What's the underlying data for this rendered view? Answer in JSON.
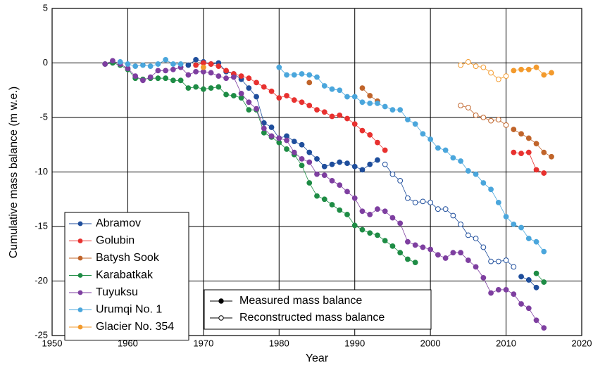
{
  "chart_data": {
    "type": "line",
    "xlabel": "Year",
    "ylabel": "Cumulative mass balance (m w.e.)",
    "xlim": [
      1950,
      2020
    ],
    "xticks": [
      1950,
      1960,
      1970,
      1980,
      1990,
      2000,
      2010,
      2020
    ],
    "ylim": [
      -25,
      5
    ],
    "yticks": [
      -25,
      -20,
      -15,
      -10,
      -5,
      0,
      5
    ],
    "grid": true,
    "legend": "lower left",
    "marker_legend": [
      {
        "style": "measured",
        "label": "Measured mass balance"
      },
      {
        "style": "reconstructed",
        "label": "Reconstructed mass balance"
      }
    ],
    "series": [
      {
        "name": "Abramov",
        "color": "#1f4e9c",
        "segments": [
          {
            "style": "measured",
            "x": [
              1968,
              1969,
              1970,
              1971,
              1972,
              1973,
              1974,
              1975,
              1976,
              1977,
              1978,
              1979,
              1980,
              1981,
              1982,
              1983,
              1984,
              1985,
              1986,
              1987,
              1988,
              1989,
              1990,
              1991,
              1992,
              1993
            ],
            "values": [
              -0.2,
              0.3,
              0.1,
              -0.1,
              0.0,
              -0.8,
              -1.0,
              -1.5,
              -2.3,
              -3.1,
              -5.5,
              -5.9,
              -6.9,
              -6.7,
              -7.2,
              -7.5,
              -8.2,
              -8.8,
              -9.5,
              -9.3,
              -9.1,
              -9.2,
              -9.5,
              -9.8,
              -9.3,
              -8.9
            ]
          },
          {
            "style": "reconstructed",
            "x": [
              1994,
              1995,
              1996,
              1997,
              1998,
              1999,
              2000,
              2001,
              2002,
              2003,
              2004,
              2005,
              2006,
              2007,
              2008,
              2009,
              2010,
              2011
            ],
            "values": [
              -9.3,
              -10.2,
              -10.8,
              -12.4,
              -12.8,
              -12.7,
              -12.8,
              -13.4,
              -13.4,
              -14.0,
              -14.8,
              -15.8,
              -16.1,
              -16.9,
              -18.2,
              -18.2,
              -18.1,
              -18.7
            ]
          },
          {
            "style": "measured",
            "x": [
              2012,
              2013,
              2014
            ],
            "values": [
              -19.6,
              -19.9,
              -20.6
            ]
          }
        ]
      },
      {
        "name": "Golubin",
        "color": "#e8312f",
        "segments": [
          {
            "style": "measured",
            "x": [
              1969,
              1970,
              1971,
              1972,
              1973,
              1974,
              1975,
              1976,
              1977,
              1978,
              1979,
              1980,
              1981,
              1982,
              1983,
              1984,
              1985,
              1986,
              1987,
              1988,
              1989,
              1990,
              1991,
              1992,
              1993,
              1994
            ],
            "values": [
              -0.2,
              0.0,
              -0.1,
              -0.3,
              -0.7,
              -1.0,
              -1.2,
              -1.4,
              -1.8,
              -2.2,
              -2.6,
              -3.2,
              -3.0,
              -3.4,
              -3.6,
              -3.9,
              -4.3,
              -4.5,
              -4.9,
              -4.8,
              -5.1,
              -5.6,
              -6.2,
              -6.6,
              -7.3,
              -8.0
            ]
          },
          {
            "style": "measured",
            "x": [
              2011,
              2012,
              2013,
              2014,
              2015
            ],
            "values": [
              -8.2,
              -8.3,
              -8.2,
              -9.8,
              -10.1
            ]
          }
        ]
      },
      {
        "name": "Batysh Sook",
        "color": "#c0642a",
        "segments": [
          {
            "style": "measured",
            "x": [
              1984
            ],
            "values": [
              -1.8
            ]
          },
          {
            "style": "measured",
            "x": [
              1991,
              1992,
              1993
            ],
            "values": [
              -2.3,
              -3.0,
              -3.5
            ]
          },
          {
            "style": "reconstructed",
            "x": [
              2004,
              2005,
              2006,
              2007,
              2008,
              2009,
              2010
            ],
            "values": [
              -3.9,
              -4.1,
              -4.8,
              -5.0,
              -5.3,
              -5.2,
              -5.7
            ]
          },
          {
            "style": "measured",
            "x": [
              2011,
              2012,
              2013,
              2014,
              2015,
              2016
            ],
            "values": [
              -6.1,
              -6.5,
              -6.9,
              -7.4,
              -8.2,
              -8.6
            ]
          }
        ]
      },
      {
        "name": "Karabatkak",
        "color": "#1e8c45",
        "segments": [
          {
            "style": "measured",
            "x": [
              1957,
              1958,
              1959,
              1960,
              1961,
              1962,
              1963,
              1964,
              1965,
              1966,
              1967,
              1968,
              1969,
              1970,
              1971,
              1972,
              1973,
              1974,
              1975,
              1976,
              1977,
              1978,
              1979,
              1980,
              1981,
              1982,
              1983,
              1984,
              1985,
              1986,
              1987,
              1988,
              1989,
              1990,
              1991,
              1992,
              1993,
              1994,
              1995,
              1996,
              1997,
              1998
            ],
            "values": [
              -0.1,
              0.0,
              -0.2,
              -0.6,
              -1.4,
              -1.5,
              -1.4,
              -1.4,
              -1.4,
              -1.6,
              -1.6,
              -2.3,
              -2.2,
              -2.4,
              -2.3,
              -2.2,
              -2.9,
              -3.0,
              -3.2,
              -4.3,
              -4.3,
              -6.4,
              -6.8,
              -7.3,
              -7.9,
              -8.4,
              -9.4,
              -11.0,
              -12.2,
              -12.5,
              -13.0,
              -13.5,
              -13.9,
              -14.9,
              -15.3,
              -15.6,
              -15.8,
              -16.3,
              -16.8,
              -17.4,
              -18.0,
              -18.3
            ]
          },
          {
            "style": "measured",
            "x": [
              2014,
              2015
            ],
            "values": [
              -19.3,
              -20.1
            ]
          }
        ]
      },
      {
        "name": "Tuyuksu",
        "color": "#7e3fa0",
        "segments": [
          {
            "style": "measured",
            "x": [
              1957,
              1958,
              1959,
              1960,
              1961,
              1962,
              1963,
              1964,
              1965,
              1966,
              1967,
              1968,
              1969,
              1970,
              1971,
              1972,
              1973,
              1974,
              1975,
              1976,
              1977,
              1978,
              1979,
              1980,
              1981,
              1982,
              1983,
              1984,
              1985,
              1986,
              1987,
              1988,
              1989,
              1990,
              1991,
              1992,
              1993,
              1994,
              1995,
              1996,
              1997,
              1998,
              1999,
              2000,
              2001,
              2002,
              2003,
              2004,
              2005,
              2006,
              2007,
              2008,
              2009,
              2010,
              2011,
              2012,
              2013,
              2014,
              2015
            ],
            "values": [
              -0.1,
              0.2,
              -0.1,
              -0.5,
              -1.2,
              -1.6,
              -1.3,
              -0.7,
              -0.7,
              -0.6,
              -0.4,
              -1.1,
              -0.8,
              -0.8,
              -0.9,
              -1.2,
              -1.4,
              -1.3,
              -2.8,
              -3.6,
              -4.2,
              -6.0,
              -6.7,
              -6.9,
              -7.1,
              -8.2,
              -8.8,
              -9.1,
              -10.2,
              -10.3,
              -10.8,
              -11.2,
              -11.8,
              -12.4,
              -13.6,
              -13.9,
              -13.4,
              -13.6,
              -14.2,
              -14.7,
              -16.4,
              -16.7,
              -16.9,
              -17.1,
              -17.6,
              -17.9,
              -17.4,
              -17.4,
              -18.1,
              -18.7,
              -19.7,
              -21.1,
              -20.8,
              -20.8,
              -21.2,
              -22.1,
              -22.5,
              -23.6,
              -24.3
            ]
          }
        ]
      },
      {
        "name": "Urumqi No. 1",
        "color": "#4aa6dc",
        "segments": [
          {
            "style": "measured",
            "x": [
              1959,
              1960,
              1961,
              1962,
              1963,
              1964,
              1965,
              1966,
              1967
            ],
            "values": [
              0.1,
              -0.1,
              -0.3,
              -0.2,
              -0.3,
              -0.1,
              0.3,
              -0.1,
              -0.1
            ]
          },
          {
            "style": "measured",
            "x": [
              1980,
              1981,
              1982,
              1983,
              1984,
              1985,
              1986,
              1987,
              1988,
              1989,
              1990,
              1991,
              1992,
              1993,
              1994,
              1995,
              1996,
              1997,
              1998,
              1999,
              2000,
              2001,
              2002,
              2003,
              2004,
              2005,
              2006,
              2007,
              2008,
              2009,
              2010,
              2011,
              2012,
              2013,
              2014,
              2015
            ],
            "values": [
              -0.4,
              -1.1,
              -1.1,
              -1.0,
              -1.1,
              -1.3,
              -2.1,
              -2.4,
              -2.5,
              -3.1,
              -3.1,
              -3.6,
              -3.7,
              -3.7,
              -4.0,
              -4.3,
              -4.3,
              -5.2,
              -5.6,
              -6.5,
              -7.0,
              -7.8,
              -8.0,
              -8.7,
              -9.0,
              -9.9,
              -10.2,
              -11.0,
              -11.6,
              -12.8,
              -14.1,
              -14.8,
              -15.1,
              -16.1,
              -16.4,
              -17.3
            ]
          }
        ]
      },
      {
        "name": "Glacier No. 354",
        "color": "#f39a2c",
        "segments": [
          {
            "style": "measured",
            "x": [
              1970
            ],
            "values": [
              -0.4
            ]
          },
          {
            "style": "reconstructed",
            "x": [
              2004,
              2005,
              2006,
              2007,
              2008,
              2009,
              2010
            ],
            "values": [
              -0.2,
              0.1,
              -0.3,
              -0.4,
              -0.9,
              -1.5,
              -1.2
            ]
          },
          {
            "style": "measured",
            "x": [
              2011,
              2012,
              2013,
              2014,
              2015,
              2016
            ],
            "values": [
              -0.7,
              -0.6,
              -0.6,
              -0.4,
              -1.1,
              -0.9
            ]
          }
        ]
      }
    ]
  }
}
